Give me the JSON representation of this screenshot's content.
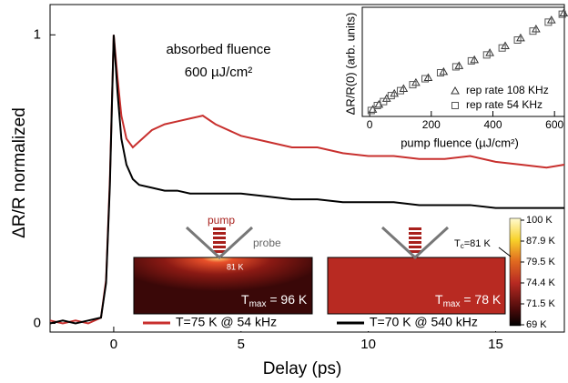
{
  "chart_data": [
    {
      "type": "line",
      "x_label": "Delay (ps)",
      "y_label": "ΔR/R normalized",
      "x": [
        -2.5,
        -2,
        -1.5,
        -1,
        -0.5,
        -0.3,
        -0.15,
        0,
        0.15,
        0.3,
        0.5,
        0.75,
        1,
        1.5,
        2,
        2.5,
        3,
        3.5,
        4,
        5,
        6,
        7,
        8,
        9,
        10,
        11,
        12,
        13,
        14,
        15,
        16,
        17,
        17.7
      ],
      "series": [
        {
          "name": "T=75 K @ 54 kHz",
          "color": "#c8302e",
          "values": [
            0.01,
            0.0,
            0.01,
            0.0,
            0.02,
            0.15,
            0.5,
            1.0,
            0.85,
            0.72,
            0.64,
            0.61,
            0.63,
            0.67,
            0.69,
            0.7,
            0.71,
            0.72,
            0.69,
            0.65,
            0.63,
            0.61,
            0.61,
            0.59,
            0.58,
            0.58,
            0.57,
            0.57,
            0.58,
            0.56,
            0.55,
            0.54,
            0.55
          ]
        },
        {
          "name": "T=70 K @ 540 kHz",
          "color": "#000000",
          "values": [
            0.0,
            0.01,
            0.0,
            0.01,
            0.02,
            0.14,
            0.48,
            1.0,
            0.8,
            0.64,
            0.55,
            0.5,
            0.48,
            0.47,
            0.46,
            0.46,
            0.45,
            0.45,
            0.45,
            0.45,
            0.44,
            0.43,
            0.43,
            0.42,
            0.42,
            0.42,
            0.41,
            0.41,
            0.41,
            0.4,
            0.4,
            0.4,
            0.4
          ]
        }
      ],
      "xlim": [
        -2.5,
        17.7
      ],
      "ylim": [
        -0.03,
        1.105
      ],
      "xticks": [
        0,
        5,
        10,
        15
      ],
      "yticks": [
        0,
        1
      ],
      "annotations": {
        "fluence_title": "absorbed fluence",
        "fluence_value": "600 µJ/cm²"
      },
      "heatmaps": [
        {
          "pump": "pump",
          "probe": "probe",
          "spot": "81 K",
          "t": "T",
          "sub": "max",
          "value": " = 96 K"
        },
        {
          "t": "T",
          "sub": "max",
          "value": " = 78 K"
        }
      ],
      "colorbar": {
        "labels": [
          "100 K",
          "87.9 K",
          "79.5 K",
          "74.4 K",
          "71.5 K",
          "69 K"
        ],
        "tc_t": "T",
        "tc_sub": "c",
        "tc_value": "=81 K"
      }
    },
    {
      "type": "scatter",
      "x_label": "pump fluence (µJ/cm²)",
      "y_label": "ΔR/R(0) (arb. units)",
      "xlim": [
        -24,
        632
      ],
      "ylim": [
        -0.02,
        1.08
      ],
      "xticks": [
        0,
        200,
        400,
        600
      ],
      "series": [
        {
          "name": "rep rate 108 KHz",
          "marker": "triangle",
          "color": "#333333",
          "x": [
            10,
            30,
            55,
            80,
            110,
            150,
            190,
            240,
            290,
            340,
            390,
            440,
            490,
            540,
            590,
            630
          ],
          "values": [
            0.05,
            0.1,
            0.16,
            0.21,
            0.26,
            0.32,
            0.37,
            0.43,
            0.49,
            0.55,
            0.62,
            0.69,
            0.77,
            0.86,
            0.95,
            1.02
          ]
        },
        {
          "name": "rep rate 54 KHz",
          "marker": "square",
          "color": "#555555",
          "x": [
            5,
            25,
            45,
            70,
            100,
            140,
            180,
            230,
            280,
            330,
            380,
            430,
            480,
            530,
            580,
            625
          ],
          "values": [
            0.04,
            0.09,
            0.13,
            0.19,
            0.24,
            0.3,
            0.36,
            0.42,
            0.48,
            0.54,
            0.6,
            0.67,
            0.75,
            0.84,
            0.93,
            1.01
          ]
        }
      ]
    }
  ]
}
